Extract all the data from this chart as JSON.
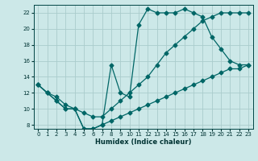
{
  "xlabel": "Humidex (Indice chaleur)",
  "bg_color": "#cce8e8",
  "grid_color": "#aacccc",
  "line_color": "#006666",
  "xlim": [
    -0.5,
    23.5
  ],
  "ylim": [
    7.5,
    23.0
  ],
  "xticks": [
    0,
    1,
    2,
    3,
    4,
    5,
    6,
    7,
    8,
    9,
    10,
    11,
    12,
    13,
    14,
    15,
    16,
    17,
    18,
    19,
    20,
    21,
    22,
    23
  ],
  "yticks": [
    8,
    10,
    12,
    14,
    16,
    18,
    20,
    22
  ],
  "line1_x": [
    0,
    1,
    2,
    3,
    4,
    5,
    6,
    7,
    8,
    9,
    10,
    11,
    12,
    13,
    14,
    15,
    16,
    17,
    18,
    19,
    20,
    21,
    22,
    23
  ],
  "line1_y": [
    13,
    12,
    11,
    10,
    10,
    7.5,
    7.5,
    8,
    15.5,
    12,
    11.5,
    20.5,
    22.5,
    22,
    22,
    22,
    22.5,
    22,
    21.5,
    19,
    17.5,
    16,
    15.5,
    15.5
  ],
  "line2_x": [
    0,
    1,
    2,
    3,
    4,
    5,
    6,
    7,
    8,
    9,
    10,
    11,
    12,
    13,
    14,
    15,
    16,
    17,
    18,
    19,
    20,
    21,
    22,
    23
  ],
  "line2_y": [
    13,
    12,
    11,
    10,
    10,
    7.5,
    7.5,
    8,
    8.5,
    9,
    9.5,
    10,
    10.5,
    11,
    11.5,
    12,
    12.5,
    13,
    13.5,
    14,
    14.5,
    15,
    15,
    15.5
  ],
  "line3_x": [
    0,
    1,
    2,
    3,
    4,
    5,
    6,
    7,
    8,
    9,
    10,
    11,
    12,
    13,
    14,
    15,
    16,
    17,
    18,
    19,
    20,
    21,
    22,
    23
  ],
  "line3_y": [
    13,
    12,
    11.5,
    10.5,
    10,
    9.5,
    9,
    9,
    10,
    11,
    12,
    13,
    14,
    15.5,
    17,
    18,
    19,
    20,
    21,
    21.5,
    22,
    22,
    22,
    22
  ]
}
